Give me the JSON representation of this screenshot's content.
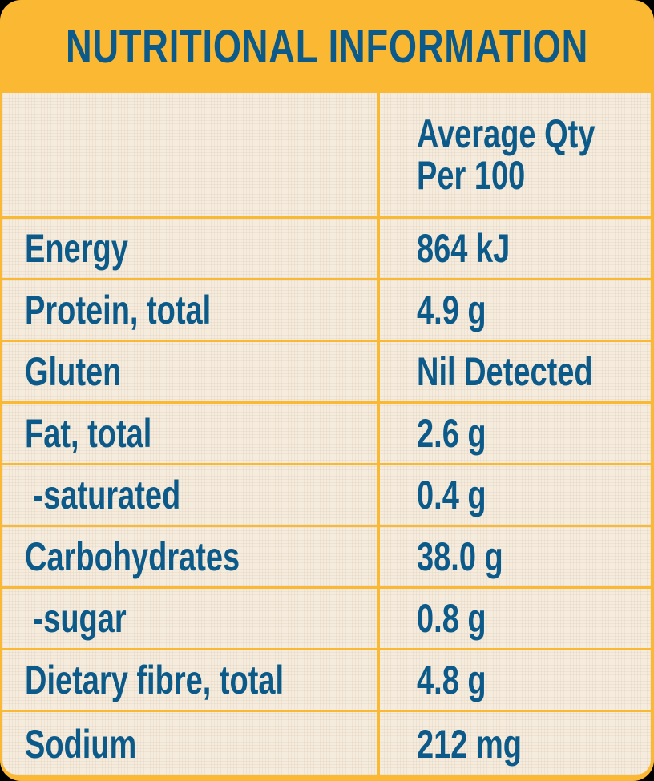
{
  "title": "NUTRITIONAL INFORMATION",
  "header": {
    "col1": "",
    "col2_line1": "Average Qty",
    "col2_line2": "Per 100"
  },
  "rows": [
    {
      "nutrient": "Energy",
      "value": "864 kJ"
    },
    {
      "nutrient": "Protein, total",
      "value": "4.9 g"
    },
    {
      "nutrient": "Gluten",
      "value": "Nil Detected"
    },
    {
      "nutrient": "Fat, total",
      "value": "2.6 g"
    },
    {
      "nutrient": " -saturated",
      "value": "0.4 g"
    },
    {
      "nutrient": "Carbohydrates",
      "value": "38.0 g"
    },
    {
      "nutrient": " -sugar",
      "value": "0.8 g"
    },
    {
      "nutrient": "Dietary fibre, total",
      "value": "4.8 g"
    },
    {
      "nutrient": "Sodium",
      "value": "212 mg"
    }
  ],
  "colors": {
    "border": "#FBB832",
    "text": "#0B5A8A",
    "background": "#F6ECDD"
  }
}
